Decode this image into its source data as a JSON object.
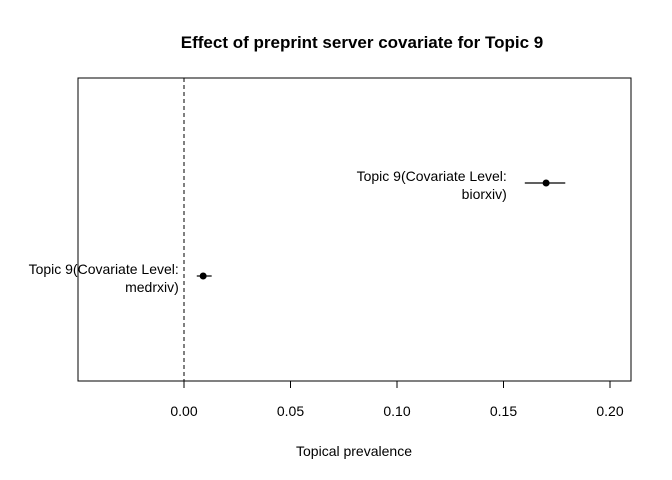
{
  "chart_data": {
    "type": "scatter",
    "title": "Effect of preprint server covariate for Topic 9",
    "xlabel": "Topical prevalence",
    "ylabel": "",
    "xlim": [
      -0.05,
      0.21
    ],
    "x_ticks": [
      0.0,
      0.05,
      0.1,
      0.15,
      0.2
    ],
    "x_tick_labels": [
      "0.00",
      "0.05",
      "0.10",
      "0.15",
      "0.20"
    ],
    "reference_line_x": 0,
    "grid": false,
    "points": [
      {
        "label_line1": "Topic 9(Covariate Level:",
        "label_line2": "biorxiv)",
        "estimate": 0.17,
        "ci": [
          0.16,
          0.179
        ]
      },
      {
        "label_line1": "Topic 9(Covariate Level:",
        "label_line2": "medrxiv)",
        "estimate": 0.009,
        "ci": [
          0.006,
          0.013
        ]
      }
    ]
  }
}
